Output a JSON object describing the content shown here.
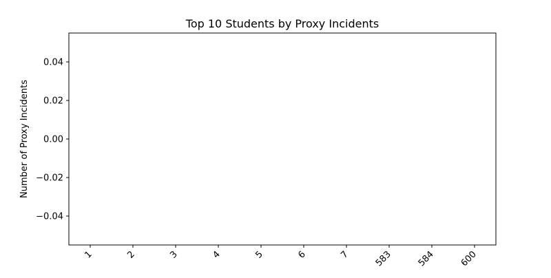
{
  "chart_data": {
    "type": "bar",
    "title": "Top 10 Students by Proxy Incidents",
    "xlabel": "",
    "ylabel": "Number of Proxy Incidents",
    "categories": [
      "1",
      "2",
      "3",
      "4",
      "5",
      "6",
      "7",
      "583",
      "584",
      "600"
    ],
    "values": [
      0,
      0,
      0,
      0,
      0,
      0,
      0,
      0,
      0,
      0
    ],
    "ylim": [
      -0.055,
      0.055
    ],
    "yticks": [
      "0.04",
      "0.02",
      "0.00",
      "−0.02",
      "−0.04"
    ],
    "ytick_values": [
      0.04,
      0.02,
      0.0,
      -0.02,
      -0.04
    ],
    "grid": false,
    "legend": "none",
    "xtick_rotation_deg": 45,
    "colors": {
      "axis": "#000000",
      "background": "#ffffff",
      "bar": "#1f77b4"
    }
  }
}
